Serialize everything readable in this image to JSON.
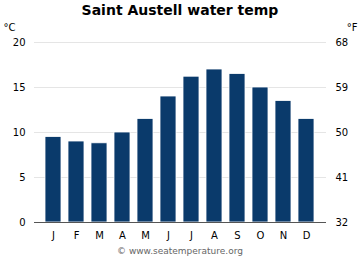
{
  "chart_data": {
    "type": "bar",
    "title": "Saint Austell water temp",
    "categories": [
      "J",
      "F",
      "M",
      "A",
      "M",
      "J",
      "J",
      "A",
      "S",
      "O",
      "N",
      "D"
    ],
    "values": [
      9.5,
      9.0,
      8.8,
      10.0,
      11.5,
      14.0,
      16.2,
      17.0,
      16.5,
      15.0,
      13.5,
      11.5
    ],
    "color": "#0a3a6b",
    "ylabel": "°C",
    "y2label": "°F",
    "ylim": [
      0,
      20
    ],
    "yticks": [
      0,
      5,
      10,
      15,
      20
    ],
    "y2lim": [
      32,
      68
    ],
    "y2ticks": [
      32,
      41,
      50,
      59,
      68
    ],
    "grid": true,
    "annotations": [
      "© www.seatemperature.org"
    ]
  }
}
